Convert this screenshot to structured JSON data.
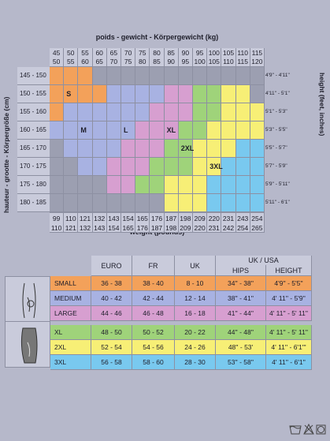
{
  "top_title": "poids - gewicht - Körpergewicht (kg)",
  "bottom_title": "weight (pounds)",
  "left_title": "hauteur - grootte - Körpergröße (cm)",
  "right_title": "height (feet, inches)",
  "kg_top": [
    "45",
    "50",
    "55",
    "60",
    "65",
    "70",
    "75",
    "80",
    "85",
    "90",
    "95",
    "100",
    "105",
    "110",
    "115"
  ],
  "kg_bottom": [
    "50",
    "55",
    "60",
    "65",
    "70",
    "75",
    "80",
    "85",
    "90",
    "95",
    "100",
    "105",
    "110",
    "115",
    "120"
  ],
  "lb_top": [
    "99",
    "110",
    "121",
    "132",
    "143",
    "154",
    "165",
    "176",
    "187",
    "198",
    "209",
    "220",
    "231",
    "243",
    "254"
  ],
  "lb_bottom": [
    "110",
    "121",
    "132",
    "143",
    "154",
    "165",
    "176",
    "187",
    "198",
    "209",
    "220",
    "231",
    "242",
    "254",
    "265"
  ],
  "cm_rows": [
    "145 - 150",
    "150 - 155",
    "155 - 160",
    "160 - 165",
    "165 - 170",
    "170 - 175",
    "175 - 180",
    "180 - 185"
  ],
  "ft_rows": [
    "4'9'' - 4'11''",
    "4'11'' - 5'1''",
    "5'1'' - 5'3''",
    "5'3'' - 5'5''",
    "5'5'' - 5'7''",
    "5'7'' - 5'9''",
    "5'9'' - 5'11''",
    "5'11'' - 6'1''"
  ],
  "grid_sizes": [
    "S",
    "M",
    "L",
    "XL",
    "2XL",
    "3XL"
  ],
  "size_colors": {
    "S": "#f3a15a",
    "M": "#a8b2e2",
    "L": "#d79fd0",
    "XL": "#9fd37a",
    "2XL": "#f7ef76",
    "3XL": "#79c9ef",
    "none": "#9c9fb1"
  },
  "table": {
    "headers": {
      "euro": "EURO",
      "fr": "FR",
      "uk": "UK",
      "ukusa": "UK / USA",
      "hips": "HIPS",
      "height": "HEIGHT"
    },
    "rows": [
      {
        "size": "SMALL",
        "euro": "36 - 38",
        "fr": "38 - 40",
        "uk": "8 - 10",
        "hips": "34'' - 38''",
        "height": "4'9'' - 5'5''",
        "color": "#f3a15a"
      },
      {
        "size": "MEDIUM",
        "euro": "40 - 42",
        "fr": "42 - 44",
        "uk": "12 - 14",
        "hips": "38'' - 41''",
        "height": "4' 11'' - 5'9''",
        "color": "#a8b2e2"
      },
      {
        "size": "LARGE",
        "euro": "44 - 46",
        "fr": "46 - 48",
        "uk": "16 - 18",
        "hips": "41'' - 44''",
        "height": "4' 11'' - 5' 11''",
        "color": "#d79fd0"
      },
      {
        "size": "XL",
        "euro": "48 - 50",
        "fr": "50 - 52",
        "uk": "20 - 22",
        "hips": "44'' - 48''",
        "height": "4' 11'' - 5' 11''",
        "color": "#9fd37a"
      },
      {
        "size": "2XL",
        "euro": "52 - 54",
        "fr": "54 - 56",
        "uk": "24 - 26",
        "hips": "48'' - 53'",
        "height": "4' 11'' - 6'1'''",
        "color": "#f7ef76"
      },
      {
        "size": "3XL",
        "euro": "56 - 58",
        "fr": "58 - 60",
        "uk": "28 - 30",
        "hips": "53'' - 58''",
        "height": "4' 11'' - 6'1''",
        "color": "#79c9ef"
      }
    ]
  },
  "icons": [
    "figure-outline-icon",
    "figure-silhouette-icon",
    "wash-care-icon",
    "no-bleach-icon",
    "tumble-dry-icon"
  ]
}
